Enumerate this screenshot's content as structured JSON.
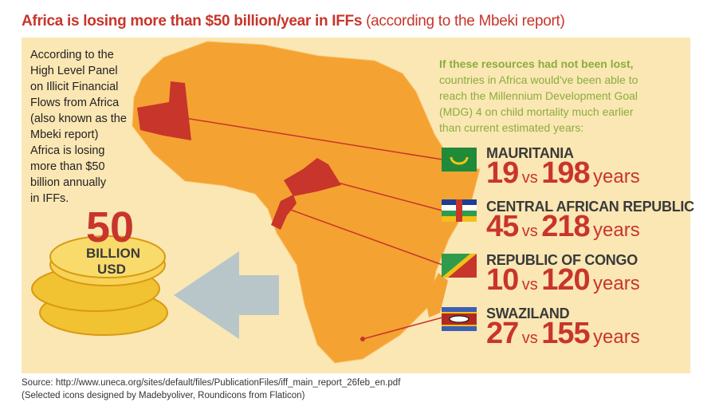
{
  "title": "Africa is losing more than $50 billion/year in IFFs",
  "title_note": "(according to the Mbeki report)",
  "left_text": [
    "According to the",
    "High Level Panel",
    "on Illicit Financial",
    "Flows from Africa",
    "(also known as the",
    "Mbeki report)",
    "Africa is losing",
    "more than $50",
    "billion annually",
    "in IFFs."
  ],
  "amount": {
    "number": "50",
    "unit": [
      "BILLION",
      "USD"
    ]
  },
  "intro": [
    "If these resources had not been lost,",
    "countries in Africa would've been able to",
    "reach the Millennium Development Goal",
    "(MDG) 4 on child mortality much earlier",
    "than current estimated years:"
  ],
  "countries": [
    {
      "name": "MAURITANIA",
      "earlier": "19",
      "vs": "vs",
      "current": "198",
      "unit": "years"
    },
    {
      "name": "CENTRAL AFRICAN REPUBLIC",
      "earlier": "45",
      "vs": "vs",
      "current": "218",
      "unit": "years"
    },
    {
      "name": "REPUBLIC OF CONGO",
      "earlier": "10",
      "vs": "vs",
      "current": "120",
      "unit": "years"
    },
    {
      "name": "SWAZILAND",
      "earlier": "27",
      "vs": "vs",
      "current": "155",
      "unit": "years"
    }
  ],
  "source": [
    "Source: http://www.uneca.org/sites/default/files/PublicationFiles/iff_main_report_26feb_en.pdf",
    "(Selected icons designed by Madebyoliver, Roundicons from Flaticon)"
  ]
}
